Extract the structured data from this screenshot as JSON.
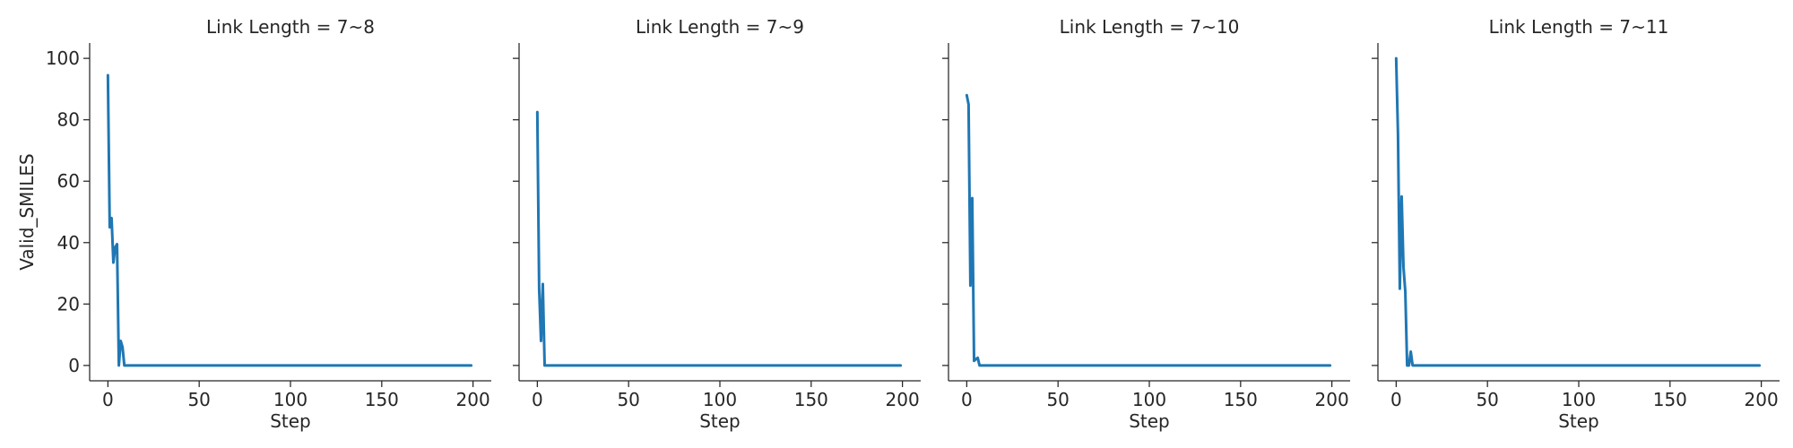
{
  "chart_data": [
    {
      "type": "line",
      "title": "Link Length = 7~8",
      "xlabel": "Step",
      "ylabel": "Valid_SMILES",
      "xlim": [
        -10,
        210
      ],
      "ylim": [
        -5,
        105
      ],
      "xticks": [
        0,
        50,
        100,
        150,
        200
      ],
      "yticks": [
        0,
        20,
        40,
        60,
        80,
        100
      ],
      "grid": false,
      "series": [
        {
          "color": "#1f77b4",
          "x": [
            0,
            1,
            2,
            3,
            4,
            5,
            6,
            7,
            8,
            9,
            10,
            15,
            20,
            50,
            100,
            150,
            199
          ],
          "y": [
            94.5,
            45,
            48,
            33.5,
            38.5,
            39.5,
            0,
            8,
            6,
            0,
            0,
            0,
            0,
            0,
            0,
            0,
            0
          ]
        }
      ]
    },
    {
      "type": "line",
      "title": "Link Length = 7~9",
      "xlabel": "Step",
      "ylabel": "",
      "xlim": [
        -10,
        210
      ],
      "ylim": [
        -5,
        105
      ],
      "xticks": [
        0,
        50,
        100,
        150,
        200
      ],
      "yticks": [
        0,
        20,
        40,
        60,
        80,
        100
      ],
      "grid": false,
      "series": [
        {
          "color": "#1f77b4",
          "x": [
            0,
            1,
            2,
            3,
            4,
            5,
            10,
            50,
            100,
            150,
            199
          ],
          "y": [
            82.5,
            25,
            8,
            26.5,
            0,
            0,
            0,
            0,
            0,
            0,
            0
          ]
        }
      ]
    },
    {
      "type": "line",
      "title": "Link Length = 7~10",
      "xlabel": "Step",
      "ylabel": "",
      "xlim": [
        -10,
        210
      ],
      "ylim": [
        -5,
        105
      ],
      "xticks": [
        0,
        50,
        100,
        150,
        200
      ],
      "yticks": [
        0,
        20,
        40,
        60,
        80,
        100
      ],
      "grid": false,
      "series": [
        {
          "color": "#1f77b4",
          "x": [
            0,
            1,
            2,
            3,
            4,
            5,
            6,
            7,
            10,
            50,
            100,
            150,
            199
          ],
          "y": [
            88,
            85,
            26,
            54.5,
            1.5,
            2,
            2.5,
            0,
            0,
            0,
            0,
            0,
            0
          ]
        }
      ]
    },
    {
      "type": "line",
      "title": "Link Length = 7~11",
      "xlabel": "Step",
      "ylabel": "",
      "xlim": [
        -10,
        210
      ],
      "ylim": [
        -5,
        105
      ],
      "xticks": [
        0,
        50,
        100,
        150,
        200
      ],
      "yticks": [
        0,
        20,
        40,
        60,
        80,
        100
      ],
      "grid": false,
      "series": [
        {
          "color": "#1f77b4",
          "x": [
            0,
            1,
            2,
            3,
            4,
            5,
            6,
            7,
            8,
            9,
            10,
            50,
            100,
            150,
            199
          ],
          "y": [
            100,
            75,
            25,
            55,
            32,
            24,
            0,
            0,
            4.5,
            0,
            0,
            0,
            0,
            0,
            0
          ]
        }
      ]
    }
  ]
}
